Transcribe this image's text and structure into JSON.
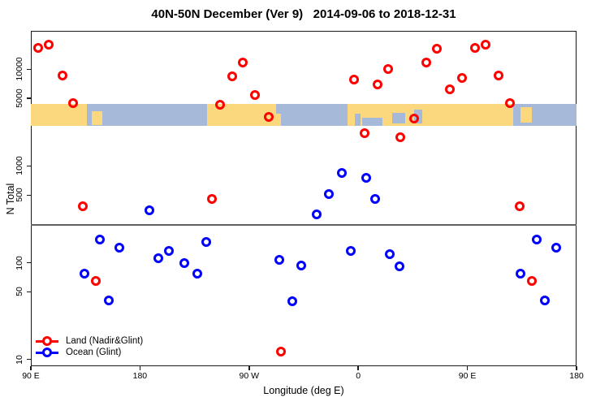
{
  "chart_data": {
    "type": "scatter",
    "title": "40N-50N December (Ver 9)   2014-09-06 to 2018-12-31",
    "xlabel": "Longitude (deg E)",
    "ylabel": "N Total",
    "x_axis": {
      "min": 90,
      "max": 540,
      "note": "longitude axis wraps around the globe: 90E -> 180 -> 90W -> 0 -> 90E -> 180",
      "ticks": [
        {
          "v": 90,
          "label": "90 E"
        },
        {
          "v": 180,
          "label": "180"
        },
        {
          "v": 270,
          "label": "90 W"
        },
        {
          "v": 360,
          "label": "0"
        },
        {
          "v": 450,
          "label": "90 E"
        },
        {
          "v": 540,
          "label": "180"
        }
      ]
    },
    "y_axis": {
      "scale": "log",
      "min": 8.5,
      "max": 25000,
      "ticks": [
        {
          "v": 10,
          "label": "10"
        },
        {
          "v": 50,
          "label": "50"
        },
        {
          "v": 100,
          "label": "100"
        },
        {
          "v": 500,
          "label": "500"
        },
        {
          "v": 1000,
          "label": "1000"
        },
        {
          "v": 5000,
          "label": "5000"
        },
        {
          "v": 10000,
          "label": "10000"
        }
      ]
    },
    "threshold_line": {
      "value": 245,
      "color": "#606060"
    },
    "map_band": {
      "value_top": 4400,
      "value_bottom": 2600,
      "ocean_color": "#A7B9D8",
      "land_color": "#FBD77E",
      "land_segments": [
        {
          "from": 90,
          "to": 136.5
        },
        {
          "from": 140.5,
          "to": 149,
          "top": 0.35,
          "height": 0.6
        },
        {
          "from": 235,
          "to": 296
        },
        {
          "from": 351,
          "to": 488
        },
        {
          "from": 494,
          "to": 503,
          "top": 0.15,
          "height": 0.7
        }
      ],
      "ocean_patches": [
        {
          "from": 292.5,
          "to": 296,
          "top": 0,
          "height": 0.45
        },
        {
          "from": 357,
          "to": 362,
          "top": 0.45,
          "height": 0.55
        },
        {
          "from": 363,
          "to": 380,
          "top": 0.62,
          "height": 0.38
        },
        {
          "from": 388,
          "to": 399,
          "top": 0.4,
          "height": 0.5
        },
        {
          "from": 406,
          "to": 413,
          "top": 0.25,
          "height": 0.65
        }
      ]
    },
    "series": [
      {
        "name": "Land (Nadir&Glint)",
        "color": "#FF0000",
        "points": [
          [
            96,
            16500
          ],
          [
            105,
            18000
          ],
          [
            116,
            8700
          ],
          [
            125,
            4450
          ],
          [
            133,
            385
          ],
          [
            143.5,
            65
          ],
          [
            239,
            460
          ],
          [
            246,
            4300
          ],
          [
            256,
            8500
          ],
          [
            265,
            11800
          ],
          [
            275,
            5400
          ],
          [
            286,
            3200
          ],
          [
            296,
            12
          ],
          [
            356.5,
            7900
          ],
          [
            365,
            2200
          ],
          [
            376,
            7000
          ],
          [
            384.5,
            10000
          ],
          [
            394.5,
            2000
          ],
          [
            406,
            3100
          ],
          [
            416,
            11800
          ],
          [
            425,
            16300
          ],
          [
            435.5,
            6200
          ],
          [
            445.5,
            8200
          ],
          [
            456,
            16500
          ],
          [
            465,
            18000
          ],
          [
            476,
            8700
          ],
          [
            485,
            4450
          ],
          [
            493,
            385
          ],
          [
            503.5,
            65
          ]
        ]
      },
      {
        "name": "Ocean (Glint)",
        "color": "#0000FF",
        "points": [
          [
            134,
            77
          ],
          [
            147,
            175
          ],
          [
            154,
            41
          ],
          [
            163,
            143
          ],
          [
            188,
            350
          ],
          [
            195,
            111
          ],
          [
            204,
            132
          ],
          [
            216.5,
            99
          ],
          [
            227,
            77
          ],
          [
            234.5,
            165
          ],
          [
            295,
            107
          ],
          [
            305.5,
            40
          ],
          [
            313,
            94
          ],
          [
            325.5,
            315
          ],
          [
            336,
            510
          ],
          [
            346.5,
            840
          ],
          [
            354,
            132
          ],
          [
            366.5,
            750
          ],
          [
            374,
            460
          ],
          [
            386,
            122
          ],
          [
            394,
            92
          ],
          [
            494,
            77
          ],
          [
            507,
            175
          ],
          [
            514,
            41
          ],
          [
            523,
            143
          ]
        ]
      }
    ],
    "legend": {
      "position": "bottom-left",
      "items": [
        {
          "label": "Land (Nadir&Glint)",
          "color": "#FF0000"
        },
        {
          "label": "Ocean (Glint)",
          "color": "#0000FF"
        }
      ]
    }
  }
}
